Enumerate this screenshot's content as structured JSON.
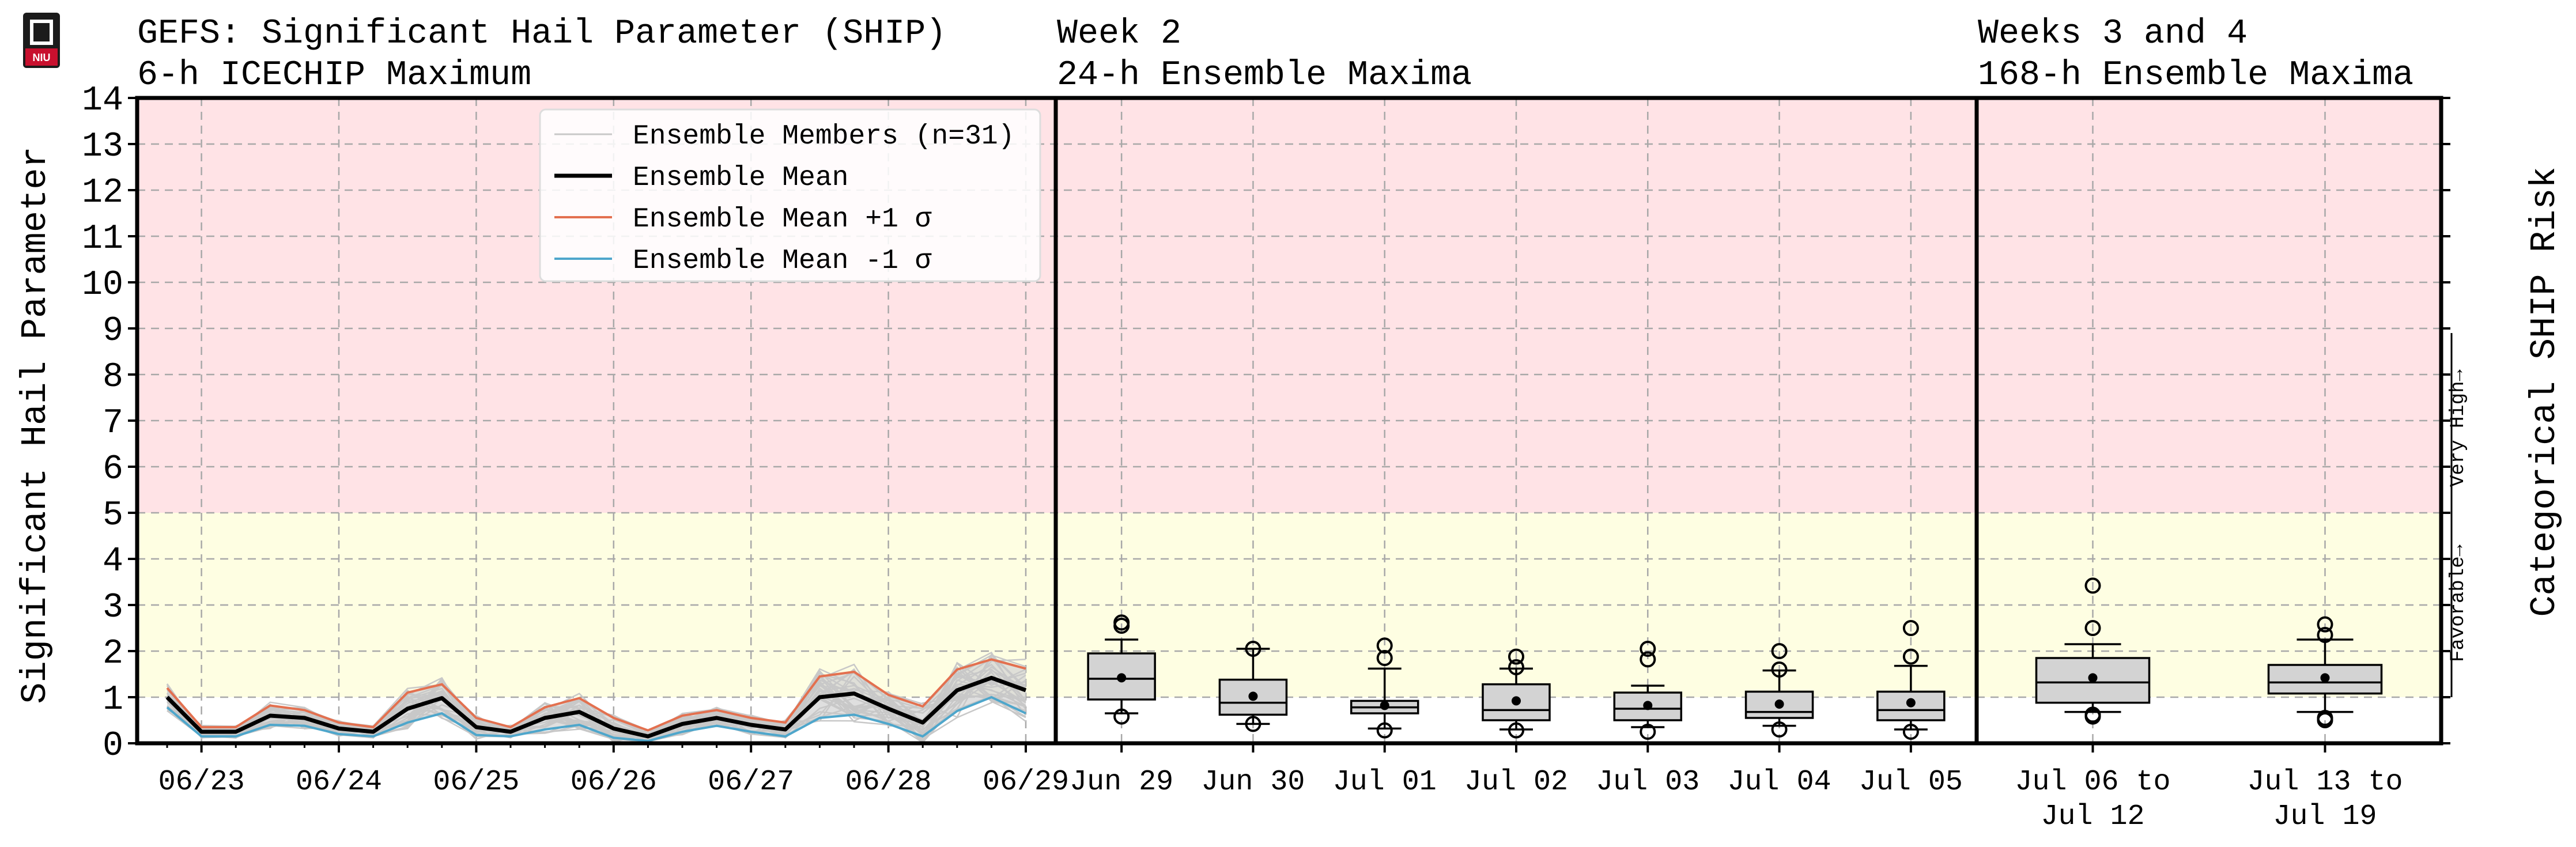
{
  "titles": {
    "left_line1": "GEFS: Significant Hail Parameter (SHIP)",
    "left_line2": "6-h ICECHIP Maximum",
    "mid_line1": "Week 2",
    "mid_line2": "24-h Ensemble Maxima",
    "right_line1": "Weeks 3 and 4",
    "right_line2": "168-h Ensemble Maxima"
  },
  "ylabel": "Significant Hail Parameter",
  "right_ylabel": "Categorical SHIP Risk",
  "category_labels": [
    "Favorable→",
    "Very High→"
  ],
  "colors": {
    "high_zone": "#ffe3e6",
    "favorable_zone": "#fefee2",
    "members": "#c8c8c8",
    "mean": "#000000",
    "plus_sigma": "#e3704f",
    "minus_sigma": "#4ea6cb",
    "spread_fill": "#d4d4d4",
    "box_fill": "#d3d3d3"
  },
  "legend": [
    {
      "label": "Ensemble Members (n=31)",
      "key": "members"
    },
    {
      "label": "Ensemble Mean",
      "key": "mean"
    },
    {
      "label": "Ensemble Mean +1 σ",
      "key": "plus"
    },
    {
      "label": "Ensemble Mean -1 σ",
      "key": "minus"
    }
  ],
  "chart_data": [
    {
      "type": "line",
      "panel": "6-h ICECHIP Maximum",
      "ylim": [
        0,
        14
      ],
      "yticks": [
        0,
        1,
        2,
        3,
        4,
        5,
        6,
        7,
        8,
        9,
        10,
        11,
        12,
        13,
        14
      ],
      "ylabel": "Significant Hail Parameter",
      "xticks": [
        "06/23",
        "06/24",
        "06/25",
        "06/26",
        "06/27",
        "06/28",
        "06/29"
      ],
      "time_steps_6h": 26,
      "grid": true,
      "legend_position": "top-right",
      "zones": [
        {
          "from": 1,
          "to": 5,
          "label": "Favorable"
        },
        {
          "from": 5,
          "to": 14,
          "label": "Very High"
        }
      ],
      "series": [
        {
          "name": "Ensemble Mean",
          "values": [
            1.0,
            0.25,
            0.25,
            0.6,
            0.55,
            0.32,
            0.25,
            0.75,
            0.98,
            0.35,
            0.25,
            0.55,
            0.68,
            0.32,
            0.15,
            0.42,
            0.55,
            0.4,
            0.3,
            1.0,
            1.08,
            0.75,
            0.45,
            1.15,
            1.42,
            1.15
          ]
        },
        {
          "name": "Ensemble Mean +1 σ",
          "values": [
            1.2,
            0.35,
            0.35,
            0.82,
            0.72,
            0.45,
            0.35,
            1.1,
            1.28,
            0.55,
            0.35,
            0.78,
            0.98,
            0.55,
            0.28,
            0.6,
            0.72,
            0.55,
            0.45,
            1.45,
            1.55,
            1.05,
            0.8,
            1.6,
            1.82,
            1.62
          ]
        },
        {
          "name": "Ensemble Mean -1 σ",
          "values": [
            0.78,
            0.15,
            0.15,
            0.4,
            0.38,
            0.2,
            0.15,
            0.45,
            0.65,
            0.18,
            0.15,
            0.3,
            0.4,
            0.12,
            0.05,
            0.25,
            0.38,
            0.25,
            0.15,
            0.55,
            0.62,
            0.42,
            0.15,
            0.7,
            1.0,
            0.65
          ]
        }
      ]
    },
    {
      "type": "box",
      "panel": "24-h Ensemble Maxima",
      "categories": [
        "Jun 29",
        "Jun 30",
        "Jul 01",
        "Jul 02",
        "Jul 03",
        "Jul 04",
        "Jul 05"
      ],
      "boxes": [
        {
          "q1": 0.95,
          "median": 1.4,
          "q3": 1.95,
          "whisker_low": 0.65,
          "whisker_high": 2.25,
          "mean": 1.42,
          "outliers": [
            2.55,
            2.62,
            0.58
          ]
        },
        {
          "q1": 0.62,
          "median": 0.88,
          "q3": 1.38,
          "whisker_low": 0.42,
          "whisker_high": 2.05,
          "mean": 1.02,
          "outliers": [
            2.05,
            0.42
          ]
        },
        {
          "q1": 0.65,
          "median": 0.78,
          "q3": 0.92,
          "whisker_low": 0.32,
          "whisker_high": 1.62,
          "mean": 0.82,
          "outliers": [
            2.12,
            1.85,
            0.28
          ]
        },
        {
          "q1": 0.5,
          "median": 0.72,
          "q3": 1.28,
          "whisker_low": 0.3,
          "whisker_high": 1.62,
          "mean": 0.92,
          "outliers": [
            1.88,
            1.65,
            0.28
          ]
        },
        {
          "q1": 0.5,
          "median": 0.75,
          "q3": 1.1,
          "whisker_low": 0.35,
          "whisker_high": 1.25,
          "mean": 0.82,
          "outliers": [
            2.05,
            1.82,
            0.25
          ]
        },
        {
          "q1": 0.55,
          "median": 0.68,
          "q3": 1.12,
          "whisker_low": 0.38,
          "whisker_high": 1.58,
          "mean": 0.85,
          "outliers": [
            2.0,
            1.6,
            0.3
          ]
        },
        {
          "q1": 0.5,
          "median": 0.72,
          "q3": 1.12,
          "whisker_low": 0.3,
          "whisker_high": 1.68,
          "mean": 0.88,
          "outliers": [
            2.5,
            1.88,
            0.25
          ]
        }
      ]
    },
    {
      "type": "box",
      "panel": "168-h Ensemble Maxima",
      "categories": [
        [
          "Jul 06 to",
          "Jul 12"
        ],
        [
          "Jul 13 to",
          "Jul 19"
        ]
      ],
      "boxes": [
        {
          "q1": 0.88,
          "median": 1.32,
          "q3": 1.85,
          "whisker_low": 0.68,
          "whisker_high": 2.15,
          "mean": 1.42,
          "outliers": [
            3.42,
            2.5,
            0.62,
            0.58
          ]
        },
        {
          "q1": 1.08,
          "median": 1.32,
          "q3": 1.7,
          "whisker_low": 0.68,
          "whisker_high": 2.25,
          "mean": 1.42,
          "outliers": [
            2.58,
            2.35,
            0.55,
            0.5
          ]
        }
      ]
    }
  ]
}
